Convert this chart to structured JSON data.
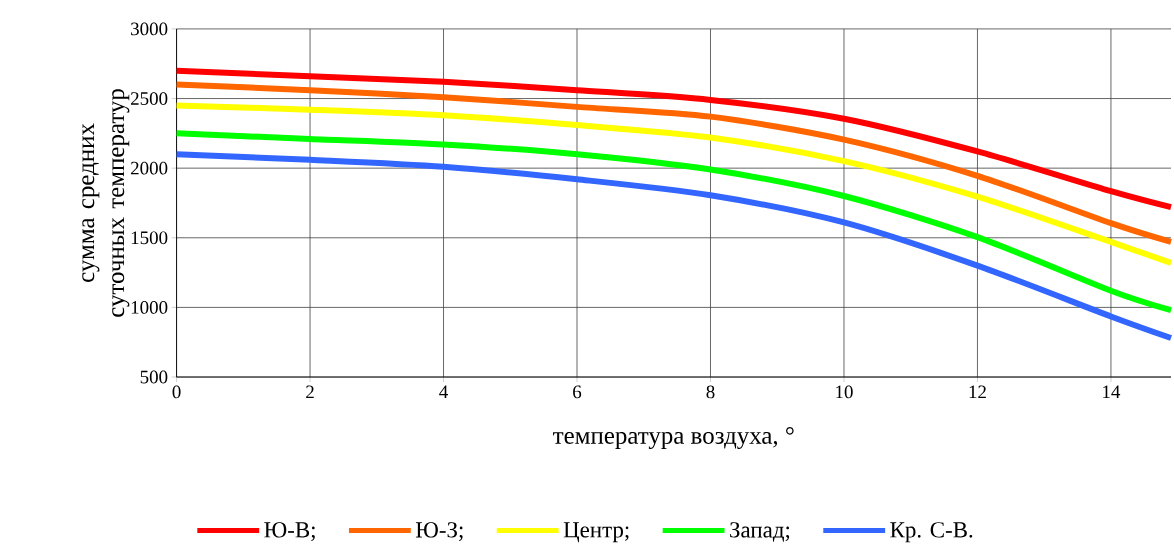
{
  "chart_data": {
    "type": "line",
    "xlabel": "температура воздуха, °",
    "ylabel": "сумма средних суточных температур",
    "x": [
      0,
      2,
      4,
      6,
      8,
      10,
      12,
      14,
      14.9
    ],
    "series": [
      {
        "name": "Ю-В;",
        "color": "#ff0000",
        "values": [
          2700,
          2660,
          2620,
          2560,
          2490,
          2355,
          2120,
          1835,
          1720
        ]
      },
      {
        "name": "Ю-З;",
        "color": "#ff6600",
        "values": [
          2600,
          2560,
          2510,
          2440,
          2370,
          2205,
          1945,
          1605,
          1470
        ]
      },
      {
        "name": "Центр;",
        "color": "#ffff00",
        "values": [
          2450,
          2420,
          2380,
          2310,
          2220,
          2050,
          1795,
          1470,
          1320
        ]
      },
      {
        "name": "Запад;",
        "color": "#00ff00",
        "values": [
          2250,
          2210,
          2170,
          2100,
          1990,
          1800,
          1505,
          1120,
          980
        ]
      },
      {
        "name": "Кр. С-В.",
        "color": "#3366ff",
        "values": [
          2100,
          2060,
          2010,
          1920,
          1805,
          1610,
          1300,
          935,
          780
        ]
      }
    ],
    "xlim": [
      0,
      14.9
    ],
    "ylim": [
      500,
      3000
    ],
    "xticks": [
      0,
      2,
      4,
      6,
      8,
      10,
      12,
      14
    ],
    "yticks": [
      500,
      1000,
      1500,
      2000,
      2500,
      3000
    ],
    "grid": true,
    "legend": "bottom"
  }
}
